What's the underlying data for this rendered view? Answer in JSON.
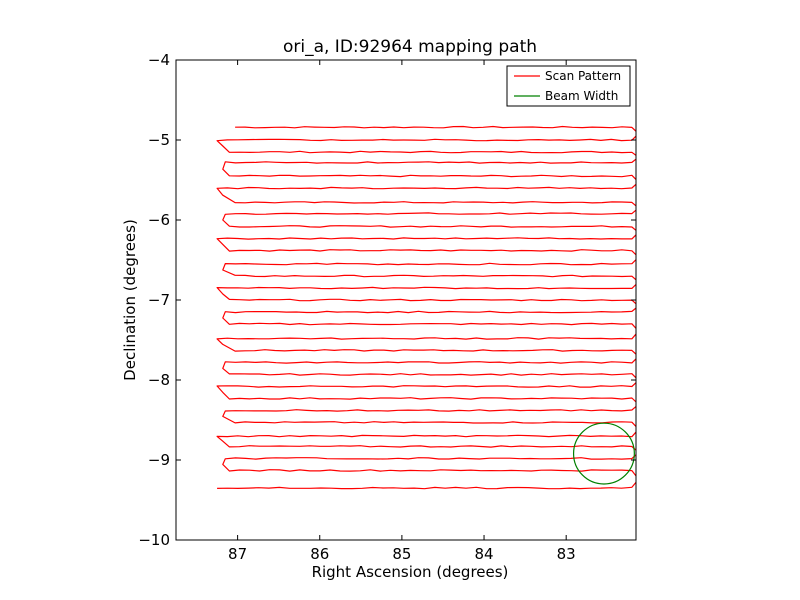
{
  "chart_data": {
    "type": "line",
    "title": "ori_a, ID:92964 mapping path",
    "xlabel": "Right Ascension (degrees)",
    "ylabel": "Declination (degrees)",
    "xlim": [
      82.15,
      87.75
    ],
    "ylim": [
      -10,
      -4
    ],
    "x_inverted": true,
    "xticks": [
      {
        "value": 87,
        "label": "87"
      },
      {
        "value": 86,
        "label": "86"
      },
      {
        "value": 85,
        "label": "85"
      },
      {
        "value": 84,
        "label": "84"
      },
      {
        "value": 83,
        "label": "83"
      }
    ],
    "yticks": [
      {
        "value": -4,
        "label": "−4"
      },
      {
        "value": -5,
        "label": "−5"
      },
      {
        "value": -6,
        "label": "−6"
      },
      {
        "value": -7,
        "label": "−7"
      },
      {
        "value": -8,
        "label": "−8"
      },
      {
        "value": -9,
        "label": "−9"
      },
      {
        "value": -10,
        "label": "−10"
      }
    ],
    "legend_position": "top-right",
    "series": [
      {
        "name": "Scan Pattern",
        "color": "#ff0000",
        "scan_pattern": "boustrophedon",
        "ra_range": [
          82.15,
          87.15
        ],
        "dec_rows": [
          -4.84,
          -5.0,
          -5.15,
          -5.28,
          -5.45,
          -5.6,
          -5.78,
          -5.92,
          -6.08,
          -6.23,
          -6.38,
          -6.55,
          -6.7,
          -6.85,
          -7.0,
          -7.15,
          -7.3,
          -7.48,
          -7.63,
          -7.78,
          -7.93,
          -8.08,
          -8.23,
          -8.38,
          -8.53,
          -8.7,
          -8.83,
          -8.98,
          -9.13,
          -9.35
        ]
      },
      {
        "name": "Beam Width",
        "color": "#008000",
        "shape": "circle",
        "center": [
          82.54,
          -8.92
        ],
        "radius": 0.37
      }
    ]
  }
}
